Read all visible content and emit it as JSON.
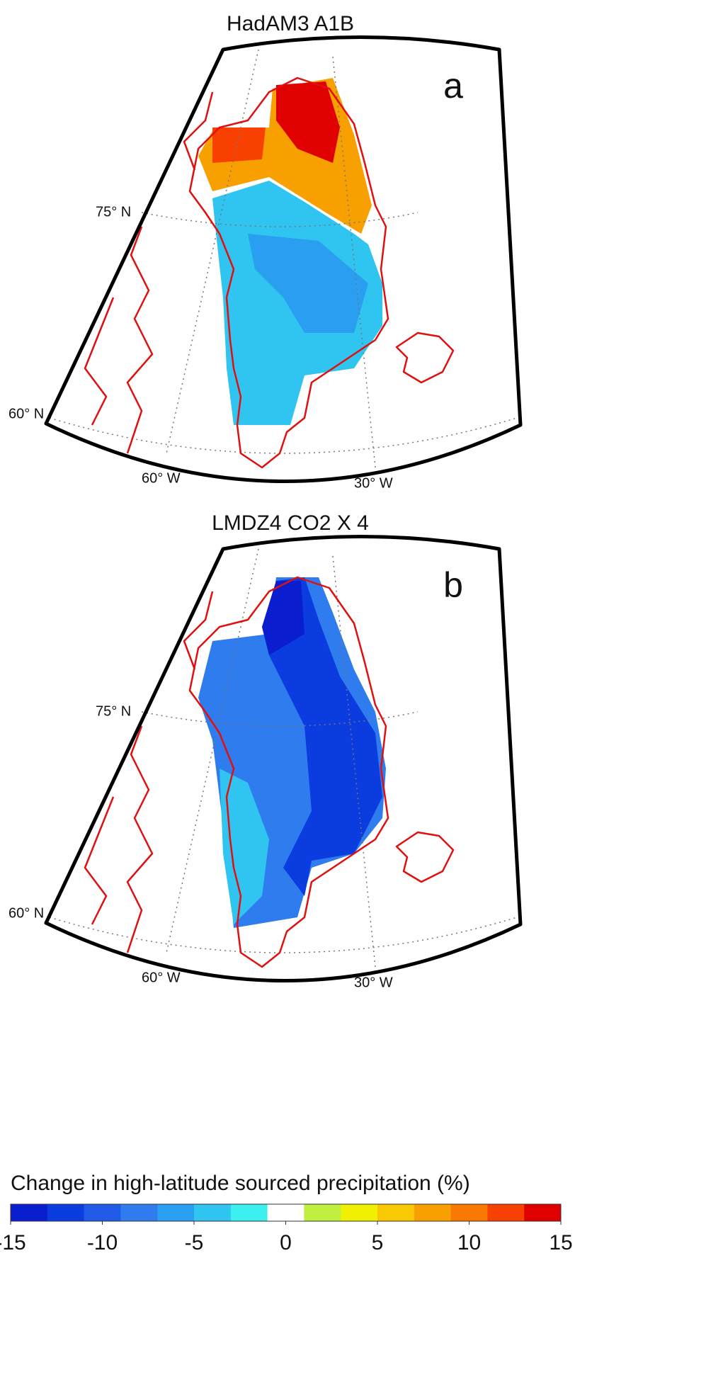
{
  "panels": [
    {
      "title": "HadAM3 A1B",
      "label": "a",
      "lat_labels": [
        "75° N",
        "60° N"
      ],
      "lon_labels": [
        "60° W",
        "30° W"
      ]
    },
    {
      "title": "LMDZ4 CO2 X 4",
      "label": "b",
      "lat_labels": [
        "75° N",
        "60° N"
      ],
      "lon_labels": [
        "60° W",
        "30° W"
      ]
    }
  ],
  "colorbar": {
    "title": "Change in high-latitude sourced precipitation (%)",
    "range": [
      -15,
      15
    ],
    "ticks": [
      -15,
      -10,
      -5,
      0,
      5,
      10,
      15
    ],
    "colors": [
      "#0a1ecf",
      "#0a3ce0",
      "#1f5ae8",
      "#2f7cef",
      "#2a9ef0",
      "#30c4f0",
      "#3cf0f0",
      "#ffffff",
      "#bff040",
      "#f0f000",
      "#f8c800",
      "#f8a000",
      "#f87800",
      "#f84000",
      "#e00000"
    ]
  }
}
